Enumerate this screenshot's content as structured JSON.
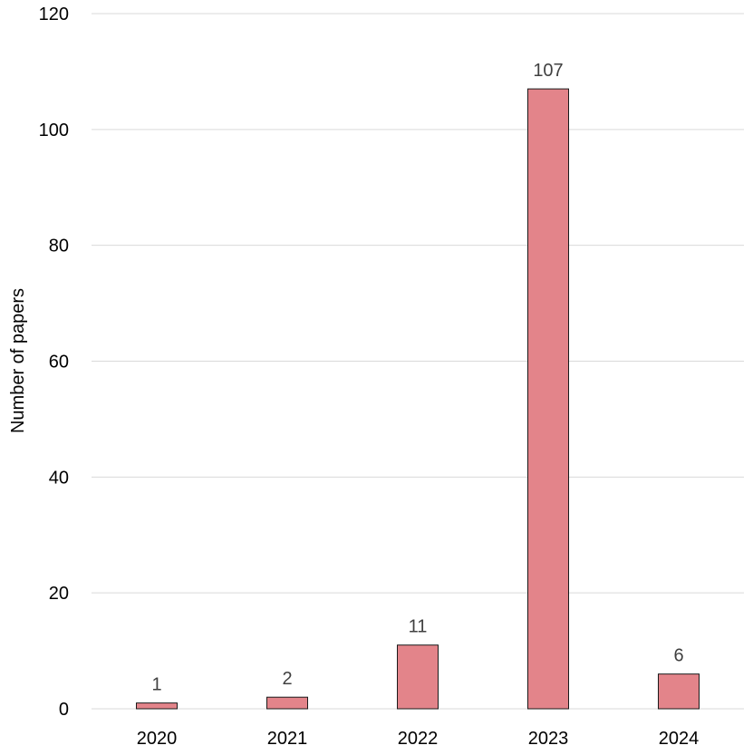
{
  "chart_data": {
    "type": "bar",
    "title": "",
    "xlabel": "",
    "ylabel": "Number of papers",
    "categories": [
      "2020",
      "2021",
      "2022",
      "2023",
      "2024"
    ],
    "values": [
      1,
      2,
      11,
      107,
      6
    ],
    "data_labels": [
      "1",
      "2",
      "11",
      "107",
      "6"
    ],
    "ylim": [
      0,
      120
    ],
    "yticks": [
      0,
      20,
      40,
      60,
      80,
      100,
      120
    ],
    "ytick_labels": [
      "0",
      "20",
      "40",
      "60",
      "80",
      "100",
      "120"
    ],
    "grid": true,
    "legend": "none"
  },
  "colors": {
    "bar_fill": "#E3848A",
    "bar_stroke": "#1a1a1a",
    "gridline": "#D9D9D9",
    "tick_label": "#000000",
    "data_label": "#404040",
    "axis_label": "#000000"
  }
}
